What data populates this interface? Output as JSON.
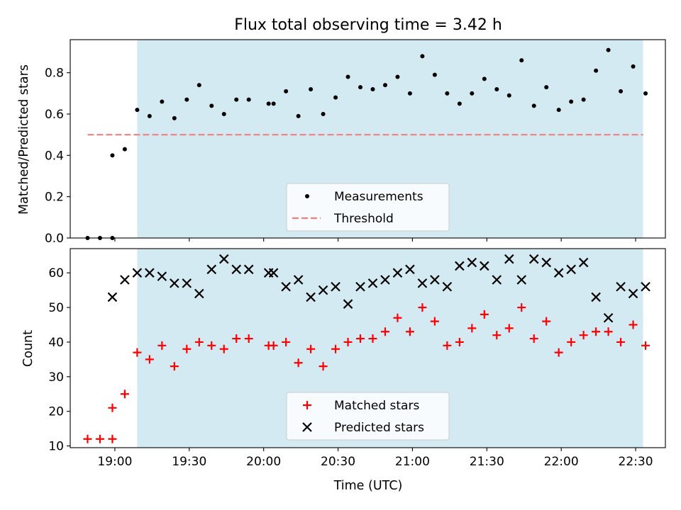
{
  "chart_data": [
    {
      "type": "scatter",
      "title": "Flux total observing time = 3.42 h",
      "ylabel": "Matched/Predicted stars",
      "xlabel": "",
      "xlim": [
        "18:42",
        "22:42"
      ],
      "ylim": [
        0,
        0.96
      ],
      "yticks": [
        "0.0",
        "0.2",
        "0.4",
        "0.6",
        "0.8"
      ],
      "shaded_span": [
        "19:09",
        "22:33"
      ],
      "shaded_color": "#add8e6",
      "legend_position": "lower center",
      "series": [
        {
          "name": "Measurements",
          "marker": "dot",
          "color": "#000000",
          "x": [
            "18:49",
            "18:54",
            "18:59",
            "18:59",
            "19:04",
            "19:09",
            "19:14",
            "19:19",
            "19:24",
            "19:29",
            "19:34",
            "19:39",
            "19:44",
            "19:49",
            "19:54",
            "20:02",
            "20:04",
            "20:09",
            "20:14",
            "20:19",
            "20:24",
            "20:29",
            "20:34",
            "20:39",
            "20:44",
            "20:49",
            "20:54",
            "20:59",
            "21:04",
            "21:09",
            "21:14",
            "21:19",
            "21:24",
            "21:29",
            "21:34",
            "21:39",
            "21:44",
            "21:49",
            "21:54",
            "21:59",
            "22:04",
            "22:09",
            "22:14",
            "22:19",
            "22:24",
            "22:29",
            "22:34"
          ],
          "y": [
            0.0,
            0.0,
            0.0,
            0.4,
            0.43,
            0.62,
            0.59,
            0.66,
            0.58,
            0.67,
            0.74,
            0.64,
            0.6,
            0.67,
            0.67,
            0.65,
            0.65,
            0.71,
            0.59,
            0.72,
            0.6,
            0.68,
            0.78,
            0.73,
            0.72,
            0.74,
            0.78,
            0.7,
            0.88,
            0.79,
            0.7,
            0.65,
            0.7,
            0.77,
            0.72,
            0.69,
            0.86,
            0.64,
            0.73,
            0.62,
            0.66,
            0.67,
            0.81,
            0.91,
            0.71,
            0.83,
            0.7
          ]
        },
        {
          "name": "Threshold",
          "line_style": "dashed",
          "color": "#f08080",
          "x": [
            "18:49",
            "22:33"
          ],
          "y": [
            0.5,
            0.5
          ]
        }
      ]
    },
    {
      "type": "scatter",
      "title": "",
      "ylabel": "Count",
      "xlabel": "Time (UTC)",
      "xlim": [
        "18:42",
        "22:42"
      ],
      "ylim": [
        9.5,
        67
      ],
      "yticks": [
        "10",
        "20",
        "30",
        "40",
        "50",
        "60"
      ],
      "xticks": [
        "19:00",
        "19:30",
        "20:00",
        "20:30",
        "21:00",
        "21:30",
        "22:00",
        "22:30"
      ],
      "shaded_span": [
        "19:09",
        "22:33"
      ],
      "shaded_color": "#add8e6",
      "legend_position": "lower center",
      "series": [
        {
          "name": "Matched stars",
          "marker": "plus",
          "color": "#ff0000",
          "x": [
            "18:49",
            "18:54",
            "18:59",
            "18:59",
            "19:04",
            "19:09",
            "19:14",
            "19:19",
            "19:24",
            "19:29",
            "19:34",
            "19:39",
            "19:44",
            "19:49",
            "19:54",
            "20:02",
            "20:04",
            "20:09",
            "20:14",
            "20:19",
            "20:24",
            "20:29",
            "20:34",
            "20:39",
            "20:44",
            "20:49",
            "20:54",
            "20:59",
            "21:04",
            "21:09",
            "21:14",
            "21:19",
            "21:24",
            "21:29",
            "21:34",
            "21:39",
            "21:44",
            "21:49",
            "21:54",
            "21:59",
            "22:04",
            "22:09",
            "22:14",
            "22:19",
            "22:24",
            "22:29",
            "22:34"
          ],
          "y": [
            12,
            12,
            12,
            21,
            25,
            37,
            35,
            39,
            33,
            38,
            40,
            39,
            38,
            41,
            41,
            39,
            39,
            40,
            34,
            38,
            33,
            38,
            40,
            41,
            41,
            43,
            47,
            43,
            50,
            46,
            39,
            40,
            44,
            48,
            42,
            44,
            50,
            41,
            46,
            37,
            40,
            42,
            43,
            43,
            40,
            45,
            39
          ]
        },
        {
          "name": "Predicted stars",
          "marker": "x",
          "color": "#000000",
          "x": [
            "18:59",
            "19:04",
            "19:09",
            "19:14",
            "19:19",
            "19:24",
            "19:29",
            "19:34",
            "19:39",
            "19:44",
            "19:49",
            "19:54",
            "20:02",
            "20:04",
            "20:09",
            "20:14",
            "20:19",
            "20:24",
            "20:29",
            "20:34",
            "20:39",
            "20:44",
            "20:49",
            "20:54",
            "20:59",
            "21:04",
            "21:09",
            "21:14",
            "21:19",
            "21:24",
            "21:29",
            "21:34",
            "21:39",
            "21:44",
            "21:49",
            "21:54",
            "21:59",
            "22:04",
            "22:09",
            "22:14",
            "22:19",
            "22:24",
            "22:29",
            "22:34"
          ],
          "y": [
            53,
            58,
            60,
            60,
            59,
            57,
            57,
            54,
            61,
            64,
            61,
            61,
            60,
            60,
            56,
            58,
            53,
            55,
            56,
            51,
            56,
            57,
            58,
            60,
            61,
            57,
            58,
            56,
            62,
            63,
            62,
            58,
            64,
            58,
            64,
            63,
            60,
            61,
            63,
            53,
            47,
            56,
            54,
            56
          ]
        }
      ]
    }
  ]
}
